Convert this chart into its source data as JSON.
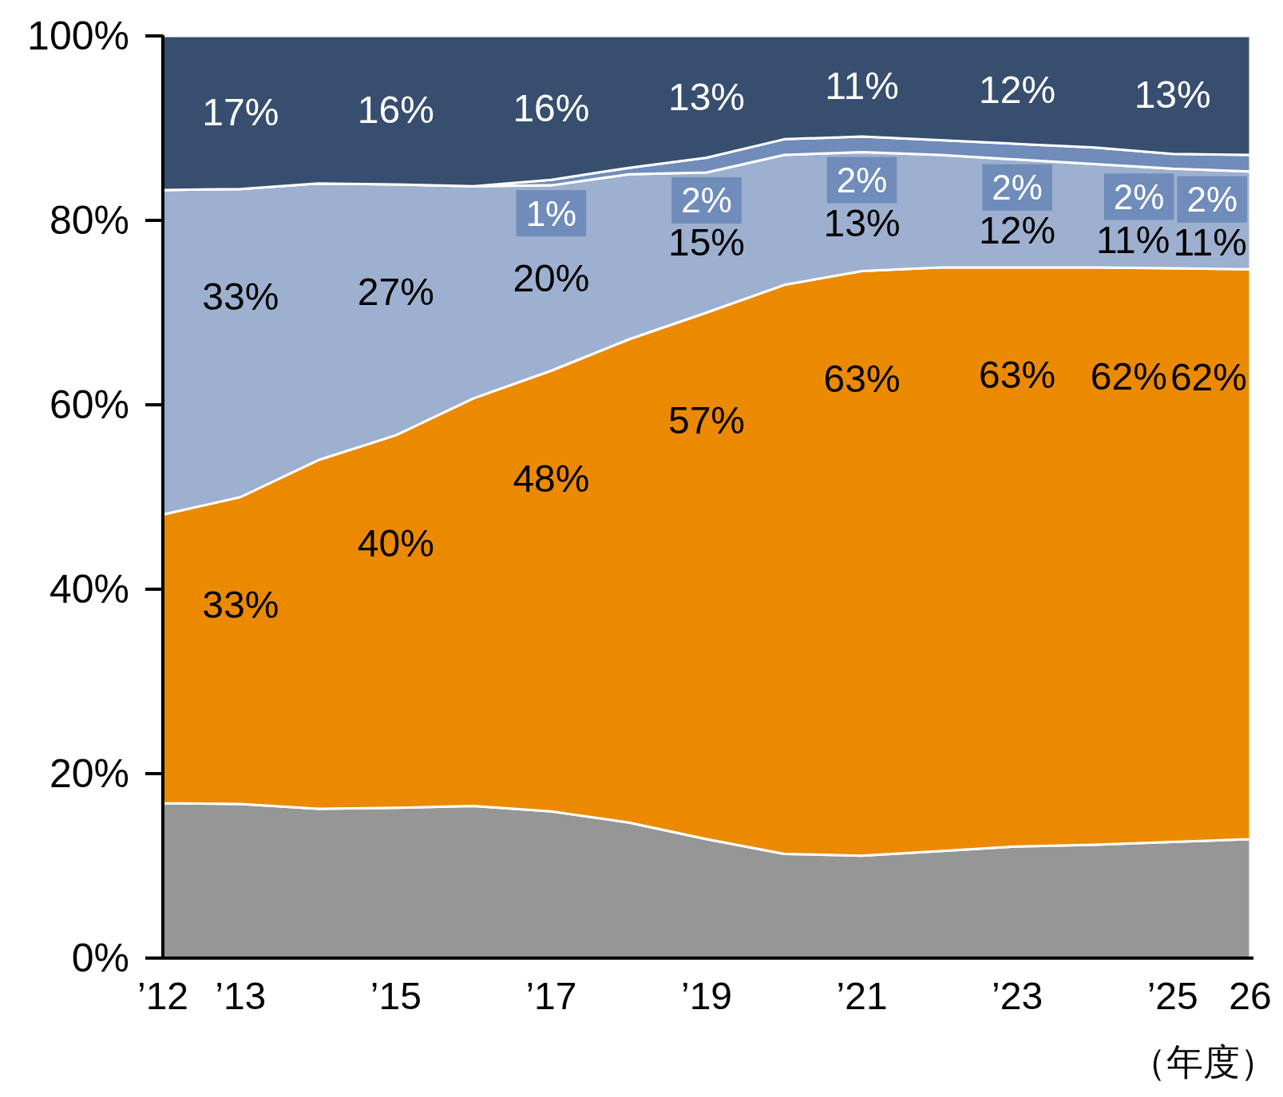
{
  "chart_data": {
    "type": "area",
    "stacked": true,
    "xlabel": "（年度）",
    "x": [
      2012,
      2013,
      2014,
      2015,
      2016,
      2017,
      2018,
      2019,
      2020,
      2021,
      2022,
      2023,
      2024,
      2025,
      2026
    ],
    "xlim": [
      2012,
      2026
    ],
    "xticks": [
      {
        "value": 2012,
        "label": "’12"
      },
      {
        "value": 2013,
        "label": "’13"
      },
      {
        "value": 2015,
        "label": "’15"
      },
      {
        "value": 2017,
        "label": "’17"
      },
      {
        "value": 2019,
        "label": "’19"
      },
      {
        "value": 2021,
        "label": "’21"
      },
      {
        "value": 2023,
        "label": "’23"
      },
      {
        "value": 2025,
        "label": "’25"
      },
      {
        "value": 2026,
        "label": "26"
      }
    ],
    "ylim": [
      0,
      100
    ],
    "yticks": [
      {
        "value": 0,
        "label": "0%"
      },
      {
        "value": 20,
        "label": "20%"
      },
      {
        "value": 40,
        "label": "40%"
      },
      {
        "value": 60,
        "label": "60%"
      },
      {
        "value": 80,
        "label": "80%"
      },
      {
        "value": 100,
        "label": "100%"
      }
    ],
    "series": [
      {
        "color": "#969696",
        "values": [
          16.8,
          16.7,
          16.2,
          16.3,
          16.5,
          15.9,
          14.7,
          12.9,
          11.3,
          11.1,
          11.6,
          12.1,
          12.3,
          12.6,
          12.9
        ]
      },
      {
        "color": "#eb8a00",
        "values": [
          31.3,
          33.3,
          37.8,
          40.4,
          44.2,
          47.8,
          52.4,
          57.1,
          61.7,
          63.4,
          63.3,
          62.8,
          62.6,
          62.2,
          61.8
        ],
        "value_labels": [
          null,
          "33%",
          null,
          "40%",
          null,
          "48%",
          null,
          "57%",
          null,
          "63%",
          null,
          "63%",
          null,
          "62%",
          "62%"
        ]
      },
      {
        "color": "#9db0cf",
        "values": [
          35.2,
          33.4,
          30.0,
          27.2,
          23.0,
          20.1,
          17.9,
          15.2,
          14.1,
          12.9,
          12.2,
          11.7,
          11.2,
          10.8,
          10.6
        ],
        "value_labels": [
          null,
          "33%",
          null,
          "27%",
          null,
          "20%",
          null,
          "15%",
          null,
          "13%",
          null,
          "12%",
          null,
          "11%",
          "11%"
        ]
      },
      {
        "color": "#6f8cba",
        "values": [
          0,
          0,
          0,
          0,
          0,
          0.6,
          0.7,
          1.6,
          1.7,
          1.7,
          1.6,
          1.7,
          1.8,
          1.6,
          1.8
        ],
        "value_labels": [
          null,
          null,
          null,
          null,
          null,
          "1%",
          null,
          "2%",
          null,
          "2%",
          null,
          "2%",
          null,
          "2%",
          "2%"
        ]
      },
      {
        "color": "#374e6f",
        "values": [
          16.7,
          16.6,
          16.0,
          16.1,
          16.3,
          15.6,
          14.3,
          13.2,
          11.2,
          10.9,
          11.3,
          11.7,
          12.1,
          12.8,
          12.9
        ],
        "value_labels": [
          null,
          "17%",
          null,
          "16%",
          null,
          "16%",
          null,
          "13%",
          null,
          "11%",
          null,
          "12%",
          null,
          "13%",
          null
        ]
      }
    ]
  }
}
